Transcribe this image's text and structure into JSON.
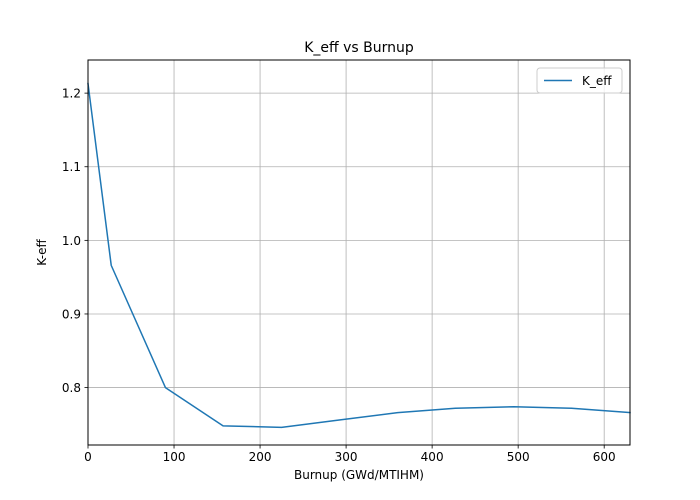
{
  "chart_data": {
    "type": "line",
    "title": "K_eff vs Burnup",
    "xlabel": "Burnup (GWd/MTIHM)",
    "ylabel": "K-eff",
    "xlim": [
      0,
      630
    ],
    "ylim": [
      0.722,
      1.245
    ],
    "xticks": [
      0,
      100,
      200,
      300,
      400,
      500,
      600
    ],
    "yticks": [
      0.8,
      0.9,
      1.0,
      1.1,
      1.2
    ],
    "xtick_labels": [
      "0",
      "100",
      "200",
      "300",
      "400",
      "500",
      "600"
    ],
    "ytick_labels": [
      "0.8",
      "0.9",
      "1.0",
      "1.1",
      "1.2"
    ],
    "grid": true,
    "legend_position": "top-right",
    "series": [
      {
        "name": "K_eff",
        "color": "#1f77b4",
        "x": [
          0,
          27,
          90,
          157,
          225,
          292,
          360,
          427,
          495,
          562,
          630
        ],
        "y": [
          1.213,
          0.966,
          0.8,
          0.748,
          0.746,
          0.756,
          0.766,
          0.772,
          0.774,
          0.772,
          0.766
        ]
      }
    ]
  }
}
